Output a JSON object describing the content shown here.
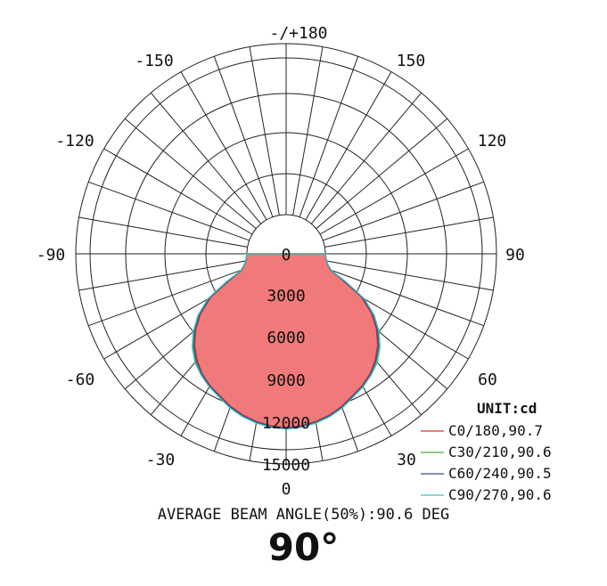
{
  "chart_data": {
    "type": "polar",
    "unit_label": "UNIT:cd",
    "angle_labels": [
      "-/+180",
      "150",
      "120",
      "90",
      "60",
      "30",
      "0",
      "-30",
      "-60",
      "-90",
      "-120",
      "-150"
    ],
    "ring_labels": [
      "0",
      "3000",
      "6000",
      "9000",
      "12000",
      "15000"
    ],
    "rlim": [
      0,
      15000
    ],
    "grid": true,
    "legend_position": "bottom-right",
    "series": [
      {
        "name": "C0/180,90.7",
        "color": "#e03030",
        "angles": [
          0,
          5,
          10,
          15,
          20,
          25,
          30,
          35,
          40,
          45,
          50,
          55,
          60,
          62,
          65,
          68,
          70,
          75,
          80,
          85,
          90
        ],
        "values": [
          11800,
          11700,
          11500,
          11200,
          10800,
          10300,
          9900,
          9400,
          8700,
          7900,
          6900,
          5700,
          4200,
          3200,
          2000,
          1100,
          700,
          350,
          150,
          50,
          0
        ]
      },
      {
        "name": "C30/210,90.6",
        "color": "#40b040",
        "angles": [
          0,
          5,
          10,
          15,
          20,
          25,
          30,
          35,
          40,
          45,
          50,
          55,
          60,
          62,
          65,
          68,
          70,
          75,
          80,
          85,
          90
        ],
        "values": [
          11900,
          11800,
          11600,
          11300,
          10900,
          10400,
          10000,
          9500,
          8900,
          8100,
          7100,
          5900,
          4400,
          3400,
          2200,
          1200,
          750,
          380,
          160,
          60,
          0
        ]
      },
      {
        "name": "C60/240,90.5",
        "color": "#3a4f8a",
        "angles": [
          0,
          5,
          10,
          15,
          20,
          25,
          30,
          35,
          40,
          45,
          50,
          55,
          60,
          62,
          65,
          68,
          70,
          75,
          80,
          85,
          90
        ],
        "values": [
          11850,
          11750,
          11550,
          11250,
          10850,
          10350,
          9950,
          9450,
          8800,
          8000,
          7000,
          5800,
          4300,
          3300,
          2100,
          1150,
          720,
          360,
          150,
          55,
          0
        ]
      },
      {
        "name": "C90/270,90.6",
        "color": "#40c0c0",
        "angles": [
          0,
          5,
          10,
          15,
          20,
          25,
          30,
          35,
          40,
          45,
          50,
          55,
          60,
          62,
          65,
          68,
          70,
          75,
          80,
          85,
          90
        ],
        "values": [
          11950,
          11850,
          11650,
          11350,
          10950,
          10450,
          10050,
          9550,
          9000,
          8200,
          7200,
          6000,
          4500,
          3500,
          2300,
          1250,
          780,
          390,
          170,
          60,
          0
        ]
      }
    ],
    "fill_color": "#f07a7a",
    "caption": "AVERAGE BEAM ANGLE(50%):90.6 DEG",
    "big_label": "90°"
  }
}
